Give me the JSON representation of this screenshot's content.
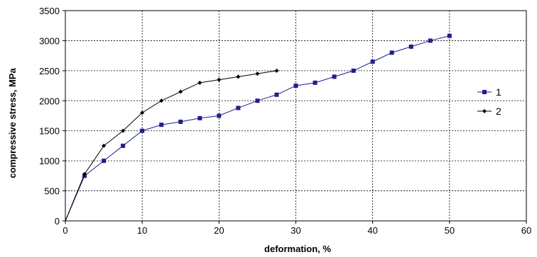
{
  "chart_data": {
    "type": "line",
    "title": "",
    "xlabel": "deformation, %",
    "ylabel": "compressive stress, MPa",
    "xlim": [
      0,
      60
    ],
    "ylim": [
      0,
      3500
    ],
    "xticks": [
      "0",
      "10",
      "20",
      "30",
      "40",
      "50",
      "60"
    ],
    "yticks": [
      "0",
      "500",
      "1000",
      "1500",
      "2000",
      "2500",
      "3000",
      "3500"
    ],
    "grid": true,
    "legend_position": "right",
    "series": [
      {
        "name": "1",
        "color": "#1f1f8f",
        "marker": "square",
        "x": [
          0,
          2.5,
          5,
          7.5,
          10,
          12.5,
          15,
          17.5,
          20,
          22.5,
          25,
          27.5,
          30,
          32.5,
          35,
          37.5,
          40,
          42.5,
          45,
          47.5,
          50
        ],
        "y": [
          0,
          750,
          1000,
          1250,
          1500,
          1600,
          1650,
          1710,
          1750,
          1880,
          2000,
          2100,
          2250,
          2300,
          2400,
          2500,
          2650,
          2800,
          2900,
          3000,
          3080
        ]
      },
      {
        "name": "2",
        "color": "#000000",
        "marker": "diamond",
        "x": [
          0,
          2.5,
          5,
          7.5,
          10,
          12.5,
          15,
          17.5,
          20,
          22.5,
          25,
          27.5
        ],
        "y": [
          0,
          780,
          1250,
          1500,
          1800,
          2000,
          2150,
          2300,
          2350,
          2400,
          2450,
          2500
        ]
      }
    ]
  }
}
